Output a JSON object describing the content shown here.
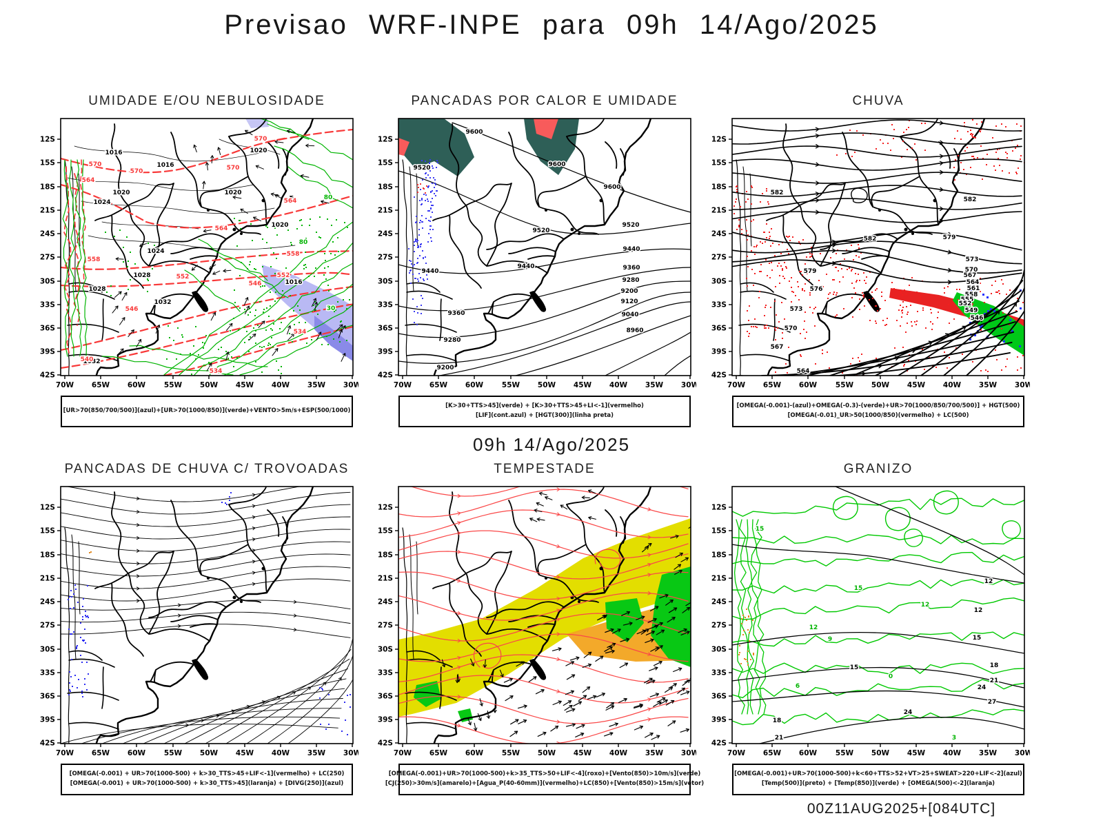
{
  "header": {
    "title": "Previsao WRF-INPE  para 09h 14/Ago/2025"
  },
  "subtitle": "09h 14/Ago/2025",
  "footer": "00Z11AUG2025+[084UTC]",
  "axes": {
    "lat": [
      "12S",
      "15S",
      "18S",
      "21S",
      "24S",
      "27S",
      "30S",
      "33S",
      "36S",
      "39S",
      "42S"
    ],
    "lon": [
      "70W",
      "65W",
      "60W",
      "55W",
      "50W",
      "45W",
      "40W",
      "35W",
      "30W"
    ]
  },
  "colors": {
    "contour_red": "#f83838",
    "contour_green": "#00b400",
    "speckle_blue": "#2a2af2",
    "teal_shade": "#2e5f57",
    "salmon_shade": "#f85b5b",
    "yellow_shade": "#e3de00",
    "orange_shade": "#f2a41f",
    "green_shade": "#08c814",
    "rain_red": "#e82222",
    "shade_blue_light": "#b9b9f4",
    "shade_blue_dark": "#8a8ae8",
    "hail_orange": "#e8821e"
  },
  "panels": [
    {
      "title": "UMIDADE E/OU NEBULOSIDADE",
      "legend": [
        "[UR>70(850/700/500)](azul)+[UR>70(1000/850)](verde)+VENTO>5m/s+ESP(500/1000)"
      ],
      "labels": [
        [
          "1016",
          77,
          52,
          "k"
        ],
        [
          "1016",
          152,
          70,
          "k"
        ],
        [
          "1020",
          88,
          110,
          "k"
        ],
        [
          "1020",
          250,
          110,
          "k"
        ],
        [
          "1020",
          287,
          49,
          "k"
        ],
        [
          "1020",
          318,
          157,
          "k"
        ],
        [
          "1024",
          60,
          124,
          "k"
        ],
        [
          "1024",
          138,
          195,
          "k"
        ],
        [
          "1028",
          118,
          230,
          "k"
        ],
        [
          "1028",
          53,
          250,
          "k"
        ],
        [
          "1032",
          148,
          269,
          "k"
        ],
        [
          "1032",
          45,
          355,
          "k"
        ],
        [
          "1016",
          338,
          240,
          "k"
        ],
        [
          "570",
          50,
          69,
          "r"
        ],
        [
          "570",
          110,
          79,
          "r"
        ],
        [
          "570",
          250,
          74,
          "r"
        ],
        [
          "570",
          290,
          32,
          "r"
        ],
        [
          "564",
          40,
          92,
          "r"
        ],
        [
          "564",
          233,
          162,
          "r"
        ],
        [
          "564",
          333,
          122,
          "r"
        ],
        [
          "558",
          48,
          207,
          "r"
        ],
        [
          "558",
          337,
          199,
          "r"
        ],
        [
          "552",
          177,
          232,
          "r"
        ],
        [
          "552",
          323,
          230,
          "r"
        ],
        [
          "546",
          103,
          279,
          "r"
        ],
        [
          "546",
          282,
          242,
          "r"
        ],
        [
          "540",
          38,
          352,
          "r"
        ],
        [
          "534",
          347,
          312,
          "r"
        ],
        [
          "534",
          225,
          369,
          "r"
        ],
        [
          "80",
          388,
          117,
          "g"
        ],
        [
          "80",
          352,
          182,
          "g"
        ],
        [
          "30",
          392,
          278,
          "g"
        ]
      ]
    },
    {
      "title": "PANCADAS POR CALOR E UMIDADE",
      "legend": [
        "[K>30+TTS>45](verde) + [K>30+TTS>45+LI<-1](vermelho)",
        "[LIF](cont.azul) + [HGT(300)](linha preta)"
      ],
      "labels": [
        [
          "9600",
          110,
          22,
          "k"
        ],
        [
          "9600",
          230,
          69,
          "k"
        ],
        [
          "9600",
          310,
          102,
          "k"
        ],
        [
          "9520",
          34,
          74,
          "k"
        ],
        [
          "9520",
          207,
          165,
          "k"
        ],
        [
          "9520",
          337,
          157,
          "k"
        ],
        [
          "9440",
          46,
          224,
          "k"
        ],
        [
          "9440",
          185,
          217,
          "k"
        ],
        [
          "9440",
          338,
          192,
          "k"
        ],
        [
          "9360",
          84,
          285,
          "k"
        ],
        [
          "9360",
          338,
          219,
          "k"
        ],
        [
          "9280",
          78,
          324,
          "k"
        ],
        [
          "9280",
          337,
          237,
          "k"
        ],
        [
          "9200",
          68,
          364,
          "k"
        ],
        [
          "9200",
          335,
          253,
          "k"
        ],
        [
          "9120",
          335,
          268,
          "k"
        ],
        [
          "9040",
          336,
          287,
          "k"
        ],
        [
          "8960",
          343,
          310,
          "k"
        ]
      ]
    },
    {
      "title": "CHUVA",
      "legend": [
        "[OMEGA(-0.001)-(azul)+OMEGA(-0.3)-(verde)+UR>70(1000/850/700/500)] + HGT(500)",
        "[OMEGA(-0.01)_UR>50(1000/850)(vermelho) + LC(500)"
      ],
      "labels": [
        [
          "582",
          65,
          110,
          "k"
        ],
        [
          "582",
          345,
          120,
          "k"
        ],
        [
          "582",
          200,
          177,
          "k"
        ],
        [
          "579",
          315,
          175,
          "k"
        ],
        [
          "579",
          113,
          224,
          "k"
        ],
        [
          "576",
          122,
          250,
          "k"
        ],
        [
          "573",
          93,
          279,
          "k"
        ],
        [
          "573",
          348,
          207,
          "k"
        ],
        [
          "570",
          85,
          307,
          "k"
        ],
        [
          "570",
          347,
          222,
          "k"
        ],
        [
          "567",
          65,
          334,
          "k"
        ],
        [
          "567",
          345,
          230,
          "k"
        ],
        [
          "564",
          103,
          369,
          "k"
        ],
        [
          "564",
          349,
          240,
          "k"
        ],
        [
          "561",
          350,
          249,
          "k"
        ],
        [
          "558",
          347,
          258,
          "k"
        ],
        [
          "555",
          341,
          265,
          "k"
        ],
        [
          "552",
          338,
          271,
          "k"
        ],
        [
          "549",
          347,
          281,
          "k"
        ],
        [
          "546",
          355,
          292,
          "k"
        ]
      ]
    },
    {
      "title": "PANCADAS DE CHUVA C/ TROVOADAS",
      "legend": [
        "[OMEGA(-0.001) + UR>70(1000-500) + k>30_TTS>45+LIF<-1](vermelho) + LC(250)",
        "[OMEGA(-0.001) + UR>70(1000-500) + k>30_TTS>45](laranja) + [DIVG(250)](azul)"
      ],
      "labels": []
    },
    {
      "title": "TEMPESTADE",
      "legend": [
        "[OMEGA(-0.001)+UR>70(1000-500)+k>35_TTS>50+LIF<-4](roxo)+[Vento(850)>10m/s](verde)",
        "[CJ(250)>30m/s](amarelo)+[Agua_P(40-60mm)](vermelho)+LC(850)+[Vento(850)>15m/s](vetor)"
      ],
      "labels": []
    },
    {
      "title": "GRANIZO",
      "legend": [
        "[OMEGA(-0.001)+UR>70(1000-500)+k<60+TTS>52+VT>25+SWEAT>220+LIF<-2](azul)",
        "[Temp(500)](preto) + [Temp(850)](verde) + [OMEGA(500)<-2](laranja)"
      ],
      "labels": [
        [
          "15",
          40,
          64,
          "g"
        ],
        [
          "15",
          183,
          150,
          "g"
        ],
        [
          "12",
          280,
          174,
          "g"
        ],
        [
          "12",
          118,
          207,
          "g"
        ],
        [
          "9",
          142,
          224,
          "g"
        ],
        [
          "6",
          95,
          292,
          "g"
        ],
        [
          "3",
          322,
          367,
          "g"
        ],
        [
          "0",
          230,
          278,
          "g"
        ],
        [
          "12",
          372,
          140,
          "k"
        ],
        [
          "12",
          357,
          182,
          "k"
        ],
        [
          "15",
          177,
          265,
          "k"
        ],
        [
          "15",
          355,
          222,
          "k"
        ],
        [
          "18",
          380,
          262,
          "k"
        ],
        [
          "21",
          380,
          284,
          "k"
        ],
        [
          "24",
          362,
          294,
          "k"
        ],
        [
          "24",
          255,
          330,
          "k"
        ],
        [
          "27",
          377,
          315,
          "k"
        ],
        [
          "18",
          65,
          342,
          "k"
        ],
        [
          "21",
          68,
          367,
          "k"
        ]
      ]
    }
  ]
}
